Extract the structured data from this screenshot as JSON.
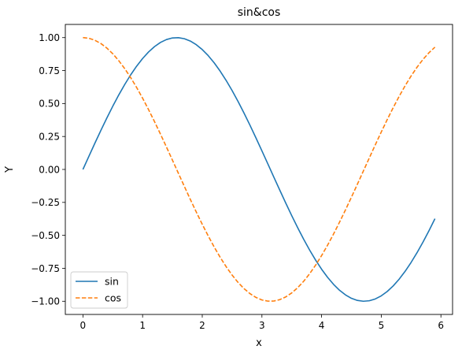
{
  "chart_data": {
    "type": "line",
    "title": "sin&cos",
    "xlabel": "x",
    "ylabel": "Y",
    "xlim": [
      -0.2951,
      6.1951
    ],
    "ylim": [
      -1.1,
      1.1
    ],
    "x_ticks": [
      0,
      1,
      2,
      3,
      4,
      5,
      6
    ],
    "x_tick_labels": [
      "0",
      "1",
      "2",
      "3",
      "4",
      "5",
      "6"
    ],
    "y_ticks": [
      -1.0,
      -0.75,
      -0.5,
      -0.25,
      0.0,
      0.25,
      0.5,
      0.75,
      1.0
    ],
    "y_tick_labels": [
      "−1.00",
      "−0.75",
      "−0.50",
      "−0.25",
      "0.00",
      "0.25",
      "0.50",
      "0.75",
      "1.00"
    ],
    "grid": false,
    "legend_position": "lower-left",
    "x": [
      0.0,
      0.1,
      0.2,
      0.3,
      0.4,
      0.5,
      0.6,
      0.7,
      0.8,
      0.9,
      1.0,
      1.1,
      1.2,
      1.3,
      1.4,
      1.5,
      1.6,
      1.7,
      1.8,
      1.9,
      2.0,
      2.1,
      2.2,
      2.3,
      2.4,
      2.5,
      2.6,
      2.7,
      2.8,
      2.9,
      3.0,
      3.1,
      3.2,
      3.3,
      3.4,
      3.5,
      3.6,
      3.7,
      3.8,
      3.9,
      4.0,
      4.1,
      4.2,
      4.3,
      4.4,
      4.5,
      4.6,
      4.7,
      4.8,
      4.9,
      5.0,
      5.1,
      5.2,
      5.3,
      5.4,
      5.5,
      5.6,
      5.7,
      5.8,
      5.9
    ],
    "series": [
      {
        "name": "sin",
        "color": "#1f77b4",
        "style": "solid",
        "values": [
          0.0,
          0.0998,
          0.1987,
          0.2955,
          0.3894,
          0.4794,
          0.5646,
          0.6442,
          0.7174,
          0.7833,
          0.8415,
          0.8912,
          0.932,
          0.9636,
          0.9854,
          0.9975,
          0.9996,
          0.9917,
          0.9738,
          0.9463,
          0.9093,
          0.8632,
          0.8085,
          0.7457,
          0.6755,
          0.5985,
          0.5155,
          0.4274,
          0.335,
          0.2392,
          0.1411,
          0.0416,
          -0.0584,
          -0.1577,
          -0.2555,
          -0.3508,
          -0.4425,
          -0.5298,
          -0.6119,
          -0.6878,
          -0.7568,
          -0.8183,
          -0.8716,
          -0.9162,
          -0.9516,
          -0.9775,
          -0.9937,
          -0.9999,
          -0.9962,
          -0.9825,
          -0.9589,
          -0.9258,
          -0.8835,
          -0.8323,
          -0.7728,
          -0.7055,
          -0.6313,
          -0.5507,
          -0.4646,
          -0.3739
        ]
      },
      {
        "name": "cos",
        "color": "#ff7f0e",
        "style": "dashed",
        "values": [
          1.0,
          0.995,
          0.9801,
          0.9553,
          0.9211,
          0.8776,
          0.8253,
          0.7648,
          0.6967,
          0.6216,
          0.5403,
          0.4536,
          0.3624,
          0.2675,
          0.17,
          0.0707,
          -0.0292,
          -0.1288,
          -0.2272,
          -0.3233,
          -0.4161,
          -0.5048,
          -0.5885,
          -0.6663,
          -0.7374,
          -0.8011,
          -0.8569,
          -0.904,
          -0.9422,
          -0.971,
          -0.99,
          -0.9991,
          -0.9983,
          -0.9875,
          -0.9668,
          -0.9365,
          -0.8968,
          -0.8481,
          -0.791,
          -0.7259,
          -0.6536,
          -0.5748,
          -0.4903,
          -0.4008,
          -0.3073,
          -0.2108,
          -0.1122,
          -0.0124,
          0.0875,
          0.1865,
          0.2837,
          0.378,
          0.4685,
          0.5544,
          0.6347,
          0.7087,
          0.7756,
          0.8347,
          0.8855,
          0.9275
        ]
      }
    ]
  }
}
